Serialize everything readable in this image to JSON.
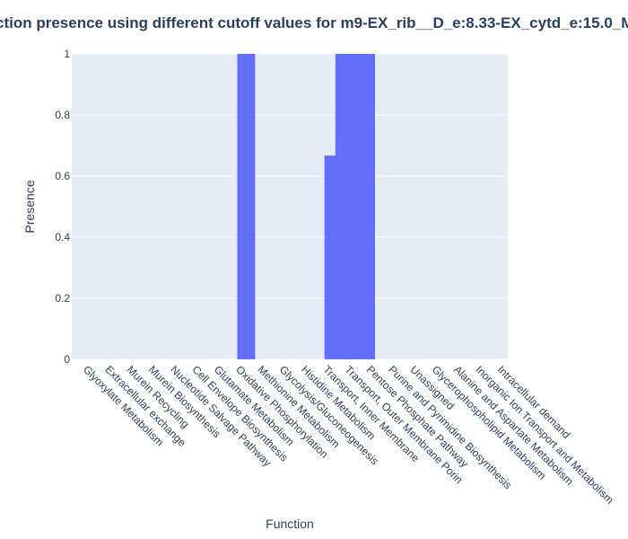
{
  "chart_data": {
    "type": "bar",
    "title": "ction presence using different cutoff values for m9-EX_rib__D_e:8.33-EX_cytd_e:15.0_M",
    "xlabel": "Function",
    "ylabel": "Presence",
    "ylim": [
      0,
      1
    ],
    "yticks": [
      0,
      0.2,
      0.4,
      0.6,
      0.8,
      1
    ],
    "ytick_labels": [
      "0",
      "0.2",
      "0.4",
      "0.6",
      "0.8",
      "1"
    ],
    "grid": true,
    "legend": "none",
    "bar_color": "#636efa",
    "plot_bg": "#e5ecf6",
    "categories": [
      "Glyoxylate Metabolism",
      "Extracellular exchange",
      "Murein Recycling",
      "Murein Biosynthesis",
      "Nucleotide Salvage Pathway",
      "Cell Envelope Biosynthesis",
      "Glutamate Metabolism",
      "Oxidative Phosphorylation",
      "Methionine Metabolism",
      "Glycolysis/Gluconeogenesis",
      "Histidine Metabolism",
      "Transport, Inner Membrane",
      "Transport, Outer Membrane Porin",
      "Pentose Phosphate Pathway",
      "Purine and Pyrimidine Biosynthesis",
      "Unassigned",
      "Glycerophospholipid Metabolism",
      "Alanine and Aspartate Metabolism",
      "Inorganic Ion Transport and Metabolism",
      "Intracellular demand"
    ],
    "values": [
      0,
      0,
      0,
      0,
      0,
      0,
      0,
      1,
      0,
      0,
      0,
      0,
      0,
      0,
      0,
      0,
      0,
      0,
      0,
      0
    ],
    "bars": [
      {
        "x": 7.5,
        "y": 1
      },
      {
        "x": 11.5,
        "y": 0.667
      },
      {
        "x": 12,
        "y": 1
      },
      {
        "x": 12.5,
        "y": 1
      },
      {
        "x": 13,
        "y": 1
      }
    ]
  }
}
